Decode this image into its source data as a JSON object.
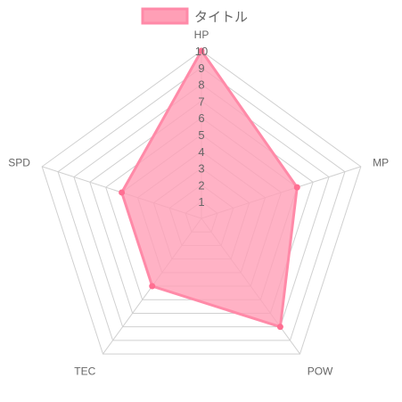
{
  "chart_data": {
    "type": "radar",
    "categories": [
      "HP",
      "MP",
      "POW",
      "TEC",
      "SPD"
    ],
    "series": [
      {
        "name": "タイトル",
        "values": [
          10,
          6,
          8,
          5,
          5
        ]
      }
    ],
    "rlim": [
      0,
      10
    ],
    "ticks": [
      "1",
      "2",
      "3",
      "4",
      "5",
      "6",
      "7",
      "8",
      "9",
      "10"
    ],
    "legend_position": "top",
    "colors": {
      "fill": "#ff9fb6",
      "stroke": "#ff8aa8",
      "point": "#ff6f92"
    }
  }
}
